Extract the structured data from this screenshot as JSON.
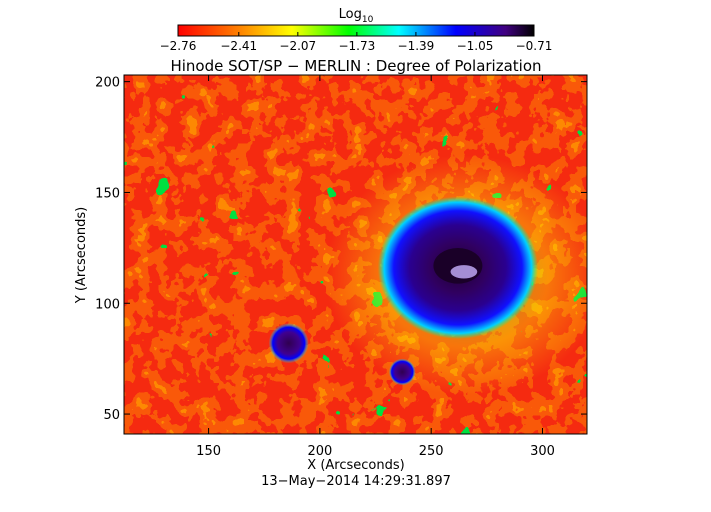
{
  "chart_data": {
    "type": "heatmap",
    "title": "Hinode SOT/SP − MERLIN : Degree of Polarization",
    "xlabel": "X (Arcseconds)",
    "ylabel": "Y (Arcseconds)",
    "timestamp": "13−May−2014 14:29:31.897",
    "xlim": [
      112,
      320
    ],
    "ylim": [
      41,
      203
    ],
    "x_ticks": [
      150,
      200,
      250,
      300
    ],
    "x_tick_labels": [
      "150",
      "200",
      "250",
      "300"
    ],
    "y_ticks": [
      50,
      100,
      150,
      200
    ],
    "y_tick_labels": [
      "50",
      "100",
      "150",
      "200"
    ],
    "colorbar": {
      "label_base": "Log",
      "label_sub": "10",
      "range": [
        -2.76,
        -0.71
      ],
      "ticks": [
        -2.76,
        -2.41,
        -2.07,
        -1.73,
        -1.39,
        -1.05,
        -0.71
      ],
      "tick_labels": [
        "−2.76",
        "−2.41",
        "−2.07",
        "−1.73",
        "−1.39",
        "−1.05",
        "−0.71"
      ],
      "colormap": [
        "#ff0000",
        "#ff8000",
        "#ffff00",
        "#00ff00",
        "#00ffff",
        "#0000ff",
        "#000000"
      ]
    },
    "features": [
      {
        "type": "sunspot",
        "x": 262,
        "y": 116,
        "log_value": -0.75
      },
      {
        "type": "pore",
        "x": 186,
        "y": 82,
        "log_value": -0.85
      },
      {
        "type": "pore",
        "x": 237,
        "y": 69,
        "log_value": -1.05
      }
    ]
  }
}
